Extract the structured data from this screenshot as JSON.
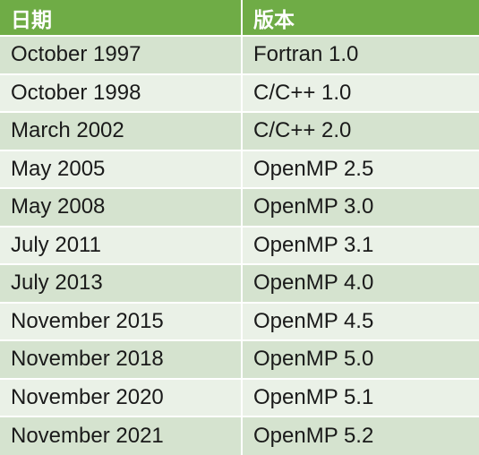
{
  "header": {
    "date_label": "日期",
    "version_label": "版本"
  },
  "rows": [
    {
      "date": "October 1997",
      "version": "Fortran 1.0"
    },
    {
      "date": "October 1998",
      "version": "C/C++ 1.0"
    },
    {
      "date": "March 2002",
      "version": "C/C++ 2.0"
    },
    {
      "date": "May 2005",
      "version": "OpenMP 2.5"
    },
    {
      "date": "May 2008",
      "version": "OpenMP 3.0"
    },
    {
      "date": "July 2011",
      "version": "OpenMP 3.1"
    },
    {
      "date": "July 2013",
      "version": "OpenMP 4.0"
    },
    {
      "date": "November 2015",
      "version": "OpenMP 4.5"
    },
    {
      "date": "November 2018",
      "version": "OpenMP 5.0"
    },
    {
      "date": "November 2020",
      "version": "OpenMP 5.1"
    },
    {
      "date": "November 2021",
      "version": "OpenMP 5.2"
    }
  ],
  "colors": {
    "header_bg": "#6fac46",
    "row_odd_bg": "#d5e3cf",
    "row_even_bg": "#eaf1e7"
  }
}
